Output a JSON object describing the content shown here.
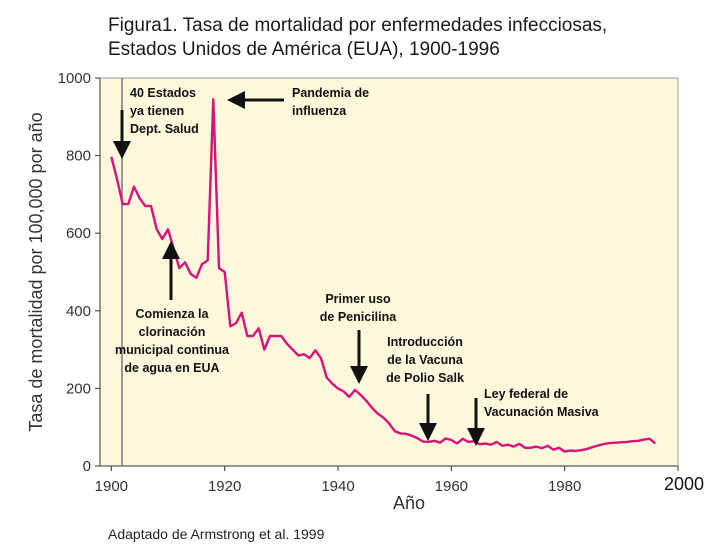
{
  "chart_data": {
    "type": "line",
    "title_line1": "Figura1. Tasa de mortalidad por enfermedades infecciosas,",
    "title_line2": "Estados Unidos de América (EUA), 1900-1996",
    "xlabel": "Año",
    "ylabel": "Tasa de mortalidad por 100,000 por año",
    "xlim": [
      1898,
      2000
    ],
    "ylim": [
      0,
      1000
    ],
    "x_ticks": [
      "1900",
      "1920",
      "1940",
      "1960",
      "1980",
      "2000"
    ],
    "y_ticks": [
      "0",
      "200",
      "400",
      "600",
      "800",
      "1000"
    ],
    "line_color": "#d6137c",
    "background_color": "#fdf8dc",
    "series": [
      {
        "name": "Tasa de mortalidad",
        "x": [
          1900,
          1901,
          1902,
          1903,
          1904,
          1905,
          1906,
          1907,
          1908,
          1909,
          1910,
          1911,
          1912,
          1913,
          1914,
          1915,
          1916,
          1917,
          1918,
          1919,
          1920,
          1921,
          1922,
          1923,
          1924,
          1925,
          1926,
          1927,
          1928,
          1929,
          1930,
          1931,
          1932,
          1933,
          1934,
          1935,
          1936,
          1937,
          1938,
          1939,
          1940,
          1941,
          1942,
          1943,
          1944,
          1945,
          1946,
          1947,
          1948,
          1949,
          1950,
          1951,
          1952,
          1953,
          1954,
          1955,
          1956,
          1957,
          1958,
          1959,
          1960,
          1961,
          1962,
          1963,
          1964,
          1965,
          1966,
          1967,
          1968,
          1969,
          1970,
          1971,
          1972,
          1973,
          1974,
          1975,
          1976,
          1977,
          1978,
          1979,
          1980,
          1981,
          1982,
          1983,
          1984,
          1985,
          1986,
          1987,
          1988,
          1989,
          1990,
          1991,
          1992,
          1993,
          1994,
          1995,
          1996
        ],
        "y": [
          797,
          740,
          675,
          675,
          720,
          690,
          670,
          670,
          610,
          585,
          610,
          560,
          510,
          525,
          495,
          485,
          520,
          530,
          945,
          510,
          500,
          360,
          368,
          395,
          335,
          335,
          355,
          300,
          335,
          335,
          335,
          315,
          300,
          285,
          288,
          278,
          298,
          278,
          228,
          212,
          200,
          192,
          178,
          196,
          183,
          168,
          150,
          135,
          125,
          110,
          90,
          84,
          83,
          78,
          72,
          63,
          62,
          65,
          60,
          71,
          67,
          58,
          70,
          62,
          64,
          56,
          58,
          55,
          62,
          52,
          55,
          50,
          57,
          47,
          47,
          50,
          46,
          52,
          42,
          47,
          37,
          40,
          39,
          41,
          44,
          49,
          53,
          57,
          59,
          60,
          61,
          62,
          64,
          65,
          68,
          70,
          58
        ]
      }
    ],
    "annotations": [
      {
        "lines": [
          "40 Estados",
          "ya tienen",
          "Dept. Salud"
        ]
      },
      {
        "lines": [
          "Pandemia de",
          "influenza"
        ]
      },
      {
        "lines": [
          "Comienza la",
          "clorinación",
          "municipal continua",
          "de agua en EUA"
        ]
      },
      {
        "lines": [
          "Primer uso",
          "de Penicilina"
        ]
      },
      {
        "lines": [
          "Introducción",
          "de la Vacuna",
          "de Polio Salk"
        ]
      },
      {
        "lines": [
          "Ley federal de",
          "Vacunación Masiva"
        ]
      }
    ],
    "source_note": "Adaptado de Armstrong et al. 1999"
  }
}
